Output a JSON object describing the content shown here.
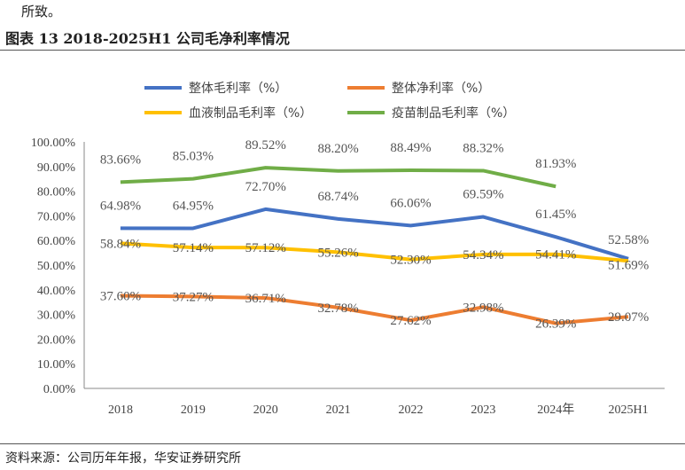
{
  "intro_text": "所致。",
  "figure_title": "图表 13  2018-2025H1 公司毛净利率情况",
  "source": "资料来源：公司历年年报，华安证券研究所",
  "chart_data": {
    "type": "line",
    "categories": [
      "2018",
      "2019",
      "2020",
      "2021",
      "2022",
      "2023",
      "2024年",
      "2025H1"
    ],
    "ylim": [
      0,
      100
    ],
    "yticks": [
      "0.00%",
      "10.00%",
      "20.00%",
      "30.00%",
      "40.00%",
      "50.00%",
      "60.00%",
      "70.00%",
      "80.00%",
      "90.00%",
      "100.00%"
    ],
    "grid": false,
    "legend": "top",
    "series": [
      {
        "name": "整体毛利率（%）",
        "color": "#4472C4",
        "values": [
          64.98,
          64.95,
          72.7,
          68.74,
          66.06,
          69.59,
          61.45,
          52.58
        ],
        "labels": [
          "64.98%",
          "64.95%",
          "72.70%",
          "68.74%",
          "66.06%",
          "69.59%",
          "61.45%",
          "52.58%"
        ]
      },
      {
        "name": "整体净利率（%）",
        "color": "#ED7D31",
        "values": [
          37.6,
          37.27,
          36.71,
          32.78,
          27.62,
          32.98,
          26.39,
          29.07
        ],
        "labels": [
          "37.60%",
          "37.27%",
          "36.71%",
          "32.78%",
          "27.62%",
          "32.98%",
          "26.39%",
          "29.07%"
        ]
      },
      {
        "name": "血液制品毛利率（%）",
        "color": "#FFC000",
        "values": [
          58.84,
          57.14,
          57.12,
          55.26,
          52.3,
          54.34,
          54.41,
          51.69
        ],
        "labels": [
          "58.84%",
          "57.14%",
          "57.12%",
          "55.26%",
          "52.30%",
          "54.34%",
          "54.41%",
          "51.69%"
        ]
      },
      {
        "name": "疫苗制品毛利率（%）",
        "color": "#70AD47",
        "values": [
          83.66,
          85.03,
          89.52,
          88.2,
          88.49,
          88.32,
          81.93,
          null
        ],
        "labels": [
          "83.66%",
          "85.03%",
          "89.52%",
          "88.20%",
          "88.49%",
          "88.32%",
          "81.93%",
          null
        ]
      }
    ]
  }
}
